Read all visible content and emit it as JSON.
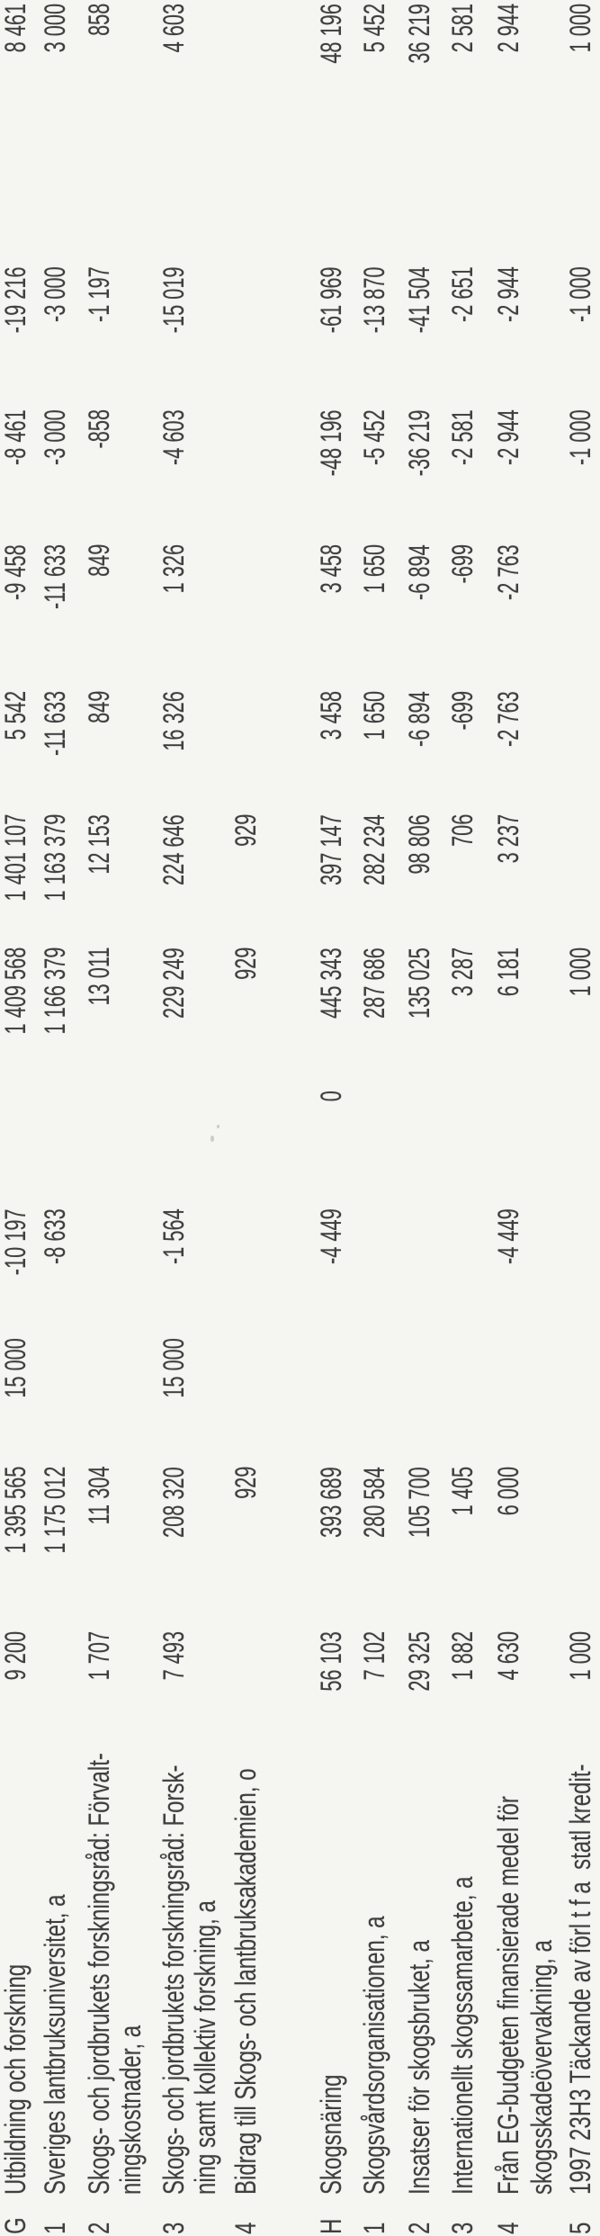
{
  "page": {
    "background_color": "#f5f5f2",
    "text_color": "#3f3f3f"
  },
  "table": {
    "rows": [
      {
        "id": "G",
        "lines": [
          "Utbildning och forskning"
        ],
        "cells": {
          "c1": "9 200",
          "c2": "1 395 565",
          "c3": "15 000",
          "c4": "-10 197",
          "c5": "1 409 568",
          "c6": "1 401 107",
          "c7": "5 542",
          "c8": "-9 458",
          "c9": "-8 461",
          "c10": "-19 216",
          "c11": "8 461"
        }
      },
      {
        "id": "1",
        "lines": [
          "Sveriges lantbruksuniversitet, a"
        ],
        "cells": {
          "c2": "1 175 012",
          "c4": "-8 633",
          "c5": "1 166 379",
          "c6": "1 163 379",
          "c7": "-11 633",
          "c8": "-11 633",
          "c9": "-3 000",
          "c10": "-3 000",
          "c11": "3 000"
        }
      },
      {
        "id": "2",
        "lines": [
          "Skogs- och jordbrukets forskningsråd: Förvalt-",
          "ningskostnader, a"
        ],
        "cells": {
          "c1": "1 707",
          "c2": "11 304",
          "c5": "13 011",
          "c6": "12 153",
          "c7": "849",
          "c8": "849",
          "c9": "-858",
          "c10": "-1 197",
          "c11": "858"
        }
      },
      {
        "id": "3",
        "lines": [
          "Skogs- och jordbrukets forskningsråd: Forsk-",
          "ning samt kollektiv forskning, a"
        ],
        "cells": {
          "c1": "7 493",
          "c2": "208 320",
          "c3": "15 000",
          "c4": "-1 564",
          "c5": "229 249",
          "c6": "224 646",
          "c7": "16 326",
          "c8": "1 326",
          "c9": "-4 603",
          "c10": "-15 019",
          "c11": "4 603"
        }
      },
      {
        "id": "4",
        "lines": [
          "Bidrag till Skogs- och lantbruksakademien, o"
        ],
        "cells": {
          "c2": "929",
          "c5": "929",
          "c6": "929"
        }
      },
      {
        "id": "H",
        "lines": [
          "Skogsnäring"
        ],
        "cells": {
          "c1": "56 103",
          "c2": "393 689",
          "c4": "-4 449",
          "c0": "0",
          "c5": "445 343",
          "c6": "397 147",
          "c7": "3 458",
          "c8": "3 458",
          "c9": "-48 196",
          "c10": "-61 969",
          "c11": "48 196"
        }
      },
      {
        "id": "1",
        "lines": [
          "Skogsvårdsorganisationen, a"
        ],
        "cells": {
          "c1": "7 102",
          "c2": "280 584",
          "c5": "287 686",
          "c6": "282 234",
          "c7": "1 650",
          "c8": "1 650",
          "c9": "-5 452",
          "c10": "-13 870",
          "c11": "5 452"
        }
      },
      {
        "id": "2",
        "lines": [
          "Insatser för skogsbruket, a"
        ],
        "cells": {
          "c1": "29 325",
          "c2": "105 700",
          "c5": "135 025",
          "c6": "98 806",
          "c7": "-6 894",
          "c8": "-6 894",
          "c9": "-36 219",
          "c10": "-41 504",
          "c11": "36 219"
        }
      },
      {
        "id": "3",
        "lines": [
          "Internationellt skogssamarbete, a"
        ],
        "cells": {
          "c1": "1 882",
          "c2": "1 405",
          "c5": "3 287",
          "c6": "706",
          "c7": "-699",
          "c8": "-699",
          "c9": "-2 581",
          "c10": "-2 651",
          "c11": "2 581"
        }
      },
      {
        "id": "4",
        "lines": [
          "Från EG-budgeten finansierade medel för",
          "skogsskadeövervakning, a"
        ],
        "cells": {
          "c1": "4 630",
          "c2": "6 000",
          "c4": "-4 449",
          "c5": "6 181",
          "c6": "3 237",
          "c7": "-2 763",
          "c8": "-2 763",
          "c9": "-2 944",
          "c10": "-2 944",
          "c11": "2 944"
        }
      },
      {
        "id": "5",
        "lines": [
          "1997 23H3 Täckande av förl t f a  statl kredit-"
        ],
        "cells": {
          "c1": "1 000",
          "c5": "1 000",
          "c9": "-1 000",
          "c10": "-1 000",
          "c11": "1 000"
        }
      }
    ]
  }
}
